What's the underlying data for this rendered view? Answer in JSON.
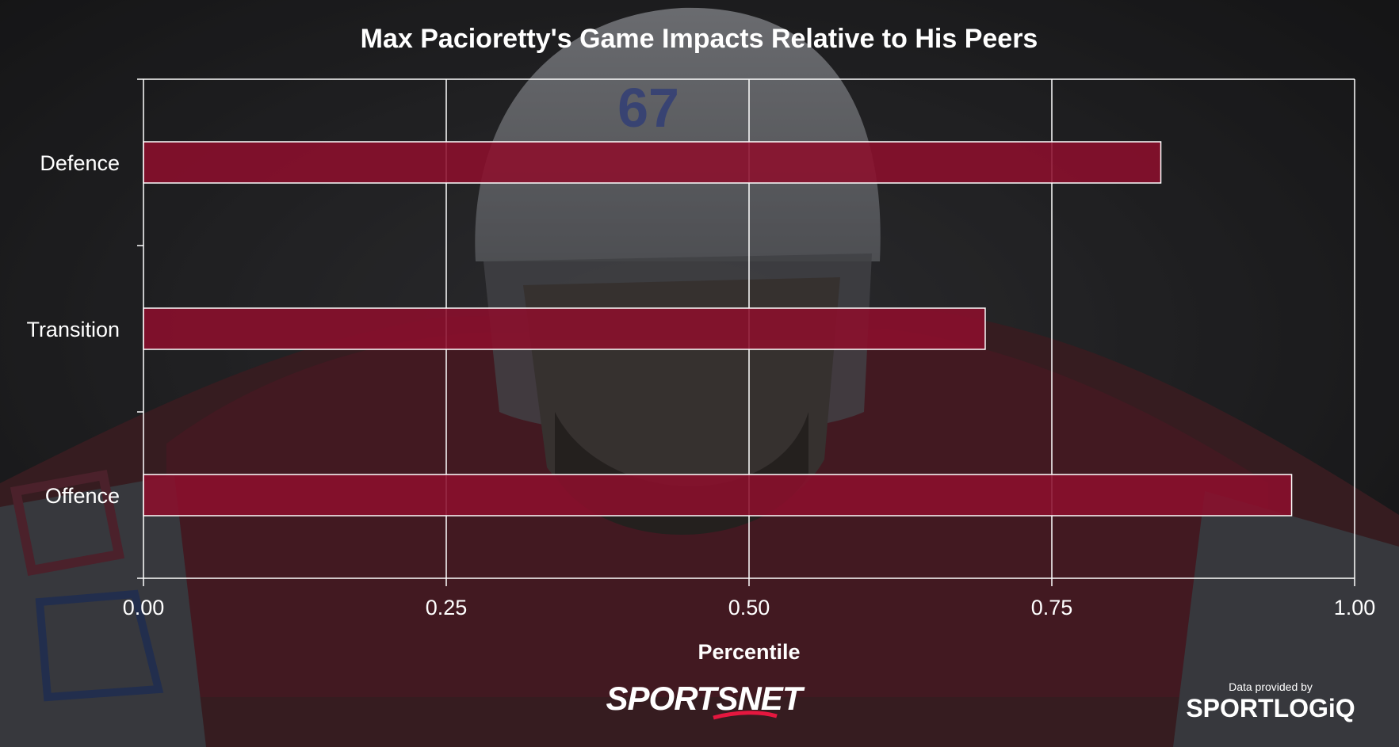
{
  "colors": {
    "bar_fill": "#8c0f2c",
    "bar_stroke": "#ffffff",
    "grid": "#ffffff",
    "text": "#ffffff",
    "jersey_red": "#9a1230",
    "jersey_blue": "#1d3a8a"
  },
  "branding": {
    "left_logo_text": "SPORTSNET",
    "right_caption": "Data provided by",
    "right_logo_text": "SPORTLOGiQ"
  },
  "background_photo": {
    "helmet_number": "67"
  },
  "chart_data": {
    "type": "bar",
    "orientation": "horizontal",
    "title": "Max Pacioretty's Game Impacts Relative to His Peers",
    "xlabel": "Percentile",
    "ylabel": "",
    "categories": [
      "Defence",
      "Transition",
      "Offence"
    ],
    "values": [
      0.84,
      0.695,
      0.948
    ],
    "xlim": [
      0,
      1
    ],
    "xticks": [
      "0.00",
      "0.25",
      "0.50",
      "0.75",
      "1.00"
    ],
    "xtick_values": [
      0,
      0.25,
      0.5,
      0.75,
      1
    ],
    "grid": true,
    "legend": "none"
  }
}
